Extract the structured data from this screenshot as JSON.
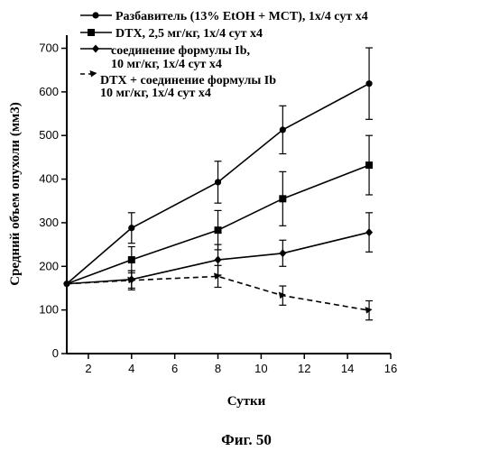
{
  "chart_data": {
    "type": "line",
    "title": "",
    "xlabel": "Сутки",
    "ylabel": "Средний объем опухоли (мм3)",
    "caption": "Фиг. 50",
    "xlim": [
      1,
      16
    ],
    "ylim": [
      0,
      730
    ],
    "xticks": [
      2,
      4,
      6,
      8,
      10,
      12,
      14,
      16
    ],
    "yticks": [
      0,
      100,
      200,
      300,
      400,
      500,
      600,
      700
    ],
    "grid": false,
    "legend_position": "top",
    "x": [
      1,
      4,
      8,
      11,
      15
    ],
    "series": [
      {
        "name": "Разбавитель (13% EtOH + MCT), 1x/4 сут x4",
        "marker": "circle",
        "line": "solid",
        "values": [
          160,
          288,
          393,
          513,
          619
        ],
        "errors": [
          0,
          35,
          48,
          55,
          82
        ]
      },
      {
        "name": "DTX, 2,5 мг/кг, 1x/4 сут x4",
        "marker": "square",
        "line": "solid",
        "values": [
          160,
          215,
          283,
          355,
          432
        ],
        "errors": [
          0,
          30,
          45,
          62,
          68
        ]
      },
      {
        "name": [
          "соединение формулы Ib,",
          "10 мг/кг, 1x/4 сут x4"
        ],
        "marker": "diamond",
        "line": "solid",
        "values": [
          160,
          170,
          215,
          230,
          278
        ],
        "errors": [
          0,
          20,
          35,
          30,
          45
        ]
      },
      {
        "name": [
          "DTX + соединение формулы Ib",
          "10 мг/кг, 1x/4 сут x4"
        ],
        "marker": "triangle",
        "line": "dashed",
        "values": [
          160,
          168,
          177,
          133,
          99
        ],
        "errors": [
          0,
          22,
          25,
          22,
          22
        ]
      }
    ]
  }
}
